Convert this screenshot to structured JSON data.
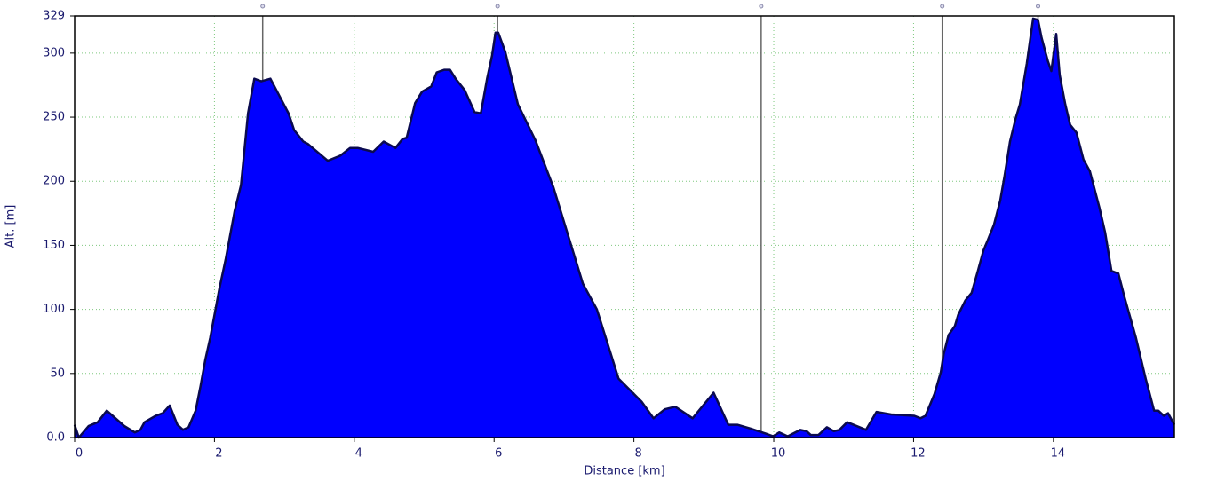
{
  "chart_data": {
    "type": "area",
    "xlabel": "Distance [km]",
    "ylabel": "Alt. [m]",
    "color": "#0000ff",
    "line_color": "#0a0a50",
    "x": [
      0,
      0.06,
      0.2,
      0.33,
      0.46,
      0.71,
      0.86,
      0.94,
      1.0,
      1.16,
      1.26,
      1.36,
      1.47,
      1.55,
      1.63,
      1.73,
      1.8,
      1.87,
      1.94,
      2.07,
      2.16,
      2.29,
      2.38,
      2.48,
      2.57,
      2.67,
      2.8,
      3.06,
      3.14,
      3.27,
      3.34,
      3.62,
      3.8,
      3.94,
      4.05,
      4.27,
      4.42,
      4.59,
      4.69,
      4.75,
      4.87,
      4.97,
      5.1,
      5.18,
      5.29,
      5.37,
      5.45,
      5.58,
      5.72,
      5.81,
      5.9,
      5.97,
      6.02,
      6.06,
      6.16,
      6.34,
      6.59,
      6.85,
      7.27,
      7.47,
      7.78,
      8.11,
      8.28,
      8.44,
      8.59,
      8.84,
      9.14,
      9.35,
      9.48,
      9.67,
      9.89,
      9.99,
      10.08,
      10.2,
      10.38,
      10.47,
      10.53,
      10.64,
      10.76,
      10.86,
      10.94,
      11.05,
      11.32,
      11.47,
      11.68,
      12.01,
      12.1,
      12.17,
      12.3,
      12.39,
      12.43,
      12.5,
      12.59,
      12.64,
      12.74,
      12.83,
      12.92,
      13.0,
      13.06,
      13.15,
      13.24,
      13.3,
      13.38,
      13.46,
      13.52,
      13.62,
      13.71,
      13.78,
      13.83,
      13.92,
      13.97,
      14.04,
      14.09,
      14.17,
      14.24,
      14.33,
      14.43,
      14.52,
      14.66,
      14.74,
      14.83,
      14.93,
      15.02,
      15.18,
      15.32,
      15.44,
      15.5,
      15.58,
      15.64,
      15.73
    ],
    "values": [
      10,
      0,
      9,
      12,
      21,
      9,
      4,
      6,
      12,
      17,
      19,
      25,
      10,
      6,
      8,
      21,
      40,
      61,
      78,
      116,
      139,
      177,
      197,
      253,
      280,
      278,
      280,
      253,
      240,
      231,
      229,
      216,
      220,
      226,
      226,
      223,
      231,
      226,
      233,
      234,
      261,
      270,
      274,
      285,
      287,
      287,
      280,
      271,
      254,
      253,
      280,
      298,
      316,
      316,
      301,
      260,
      232,
      195,
      120,
      100,
      46,
      28,
      15,
      22,
      24,
      15,
      35,
      10,
      10,
      7,
      3,
      1,
      4,
      1,
      6,
      5,
      2,
      2,
      8,
      5,
      6,
      12,
      6,
      20,
      18,
      17,
      15,
      17,
      34,
      51,
      65,
      80,
      87,
      96,
      107,
      113,
      130,
      146,
      154,
      166,
      185,
      204,
      231,
      249,
      260,
      292,
      327,
      326,
      312,
      294,
      286,
      315,
      283,
      260,
      244,
      238,
      217,
      208,
      179,
      160,
      130,
      128,
      109,
      78,
      46,
      21,
      21,
      17,
      19,
      10
    ],
    "markers": [
      2.69,
      6.05,
      9.82,
      12.41,
      13.78
    ],
    "marker_color": "#666666",
    "xlim": [
      0,
      15.73
    ],
    "ylim": [
      0,
      329
    ],
    "xticks": [
      0,
      2,
      4,
      6,
      8,
      10,
      12,
      14
    ],
    "yticks": [
      {
        "value": 0,
        "label": "0.0"
      },
      50,
      100,
      150,
      200,
      250,
      300,
      329
    ],
    "grid": true
  }
}
